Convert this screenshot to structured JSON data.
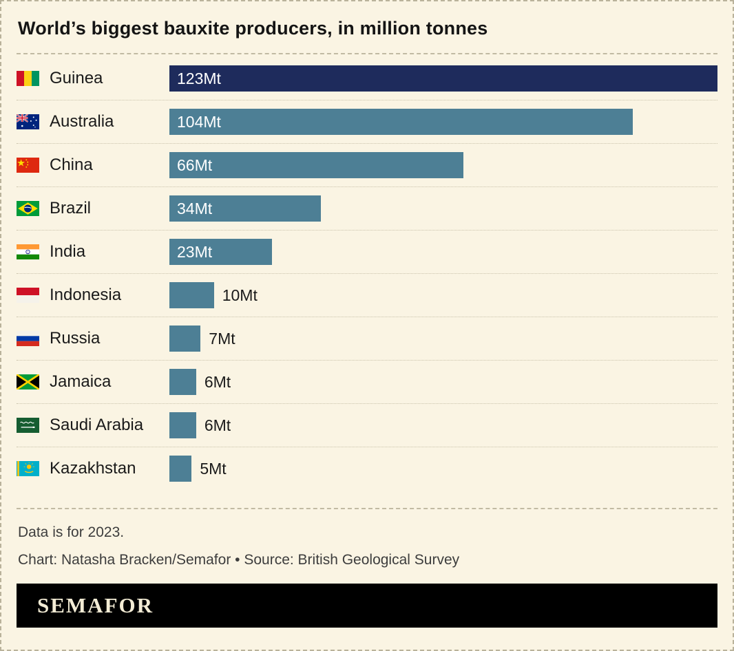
{
  "title": "World’s biggest bauxite producers, in million tonnes",
  "chart_data": {
    "type": "bar",
    "orientation": "horizontal",
    "title": "World’s biggest bauxite producers, in million tonnes",
    "unit": "Mt",
    "categories": [
      "Guinea",
      "Australia",
      "China",
      "Brazil",
      "India",
      "Indonesia",
      "Russia",
      "Jamaica",
      "Saudi Arabia",
      "Kazakhstan"
    ],
    "values": [
      123,
      104,
      66,
      34,
      23,
      10,
      7,
      6,
      6,
      5
    ],
    "value_labels": [
      "123Mt",
      "104Mt",
      "66Mt",
      "34Mt",
      "23Mt",
      "10Mt",
      "7Mt",
      "6Mt",
      "6Mt",
      "5Mt"
    ],
    "label_position": [
      "inside",
      "inside",
      "inside",
      "inside",
      "inside",
      "outside",
      "outside",
      "outside",
      "outside",
      "outside"
    ],
    "flags": [
      "guinea",
      "australia",
      "china",
      "brazil",
      "india",
      "indonesia",
      "russia",
      "jamaica",
      "saudi-arabia",
      "kazakhstan"
    ],
    "xlim": [
      0,
      123
    ],
    "grid": false,
    "legend": "none",
    "colors": {
      "highlight_bar": "#1e2b5c",
      "default_bar": "#4d7f95"
    },
    "highlight_category": "Guinea"
  },
  "footer": {
    "note": "Data is for 2023.",
    "credit": "Chart: Natasha Bracken/Semafor • Source: British Geological Survey"
  },
  "logo": {
    "text": "SEMAFOR"
  }
}
